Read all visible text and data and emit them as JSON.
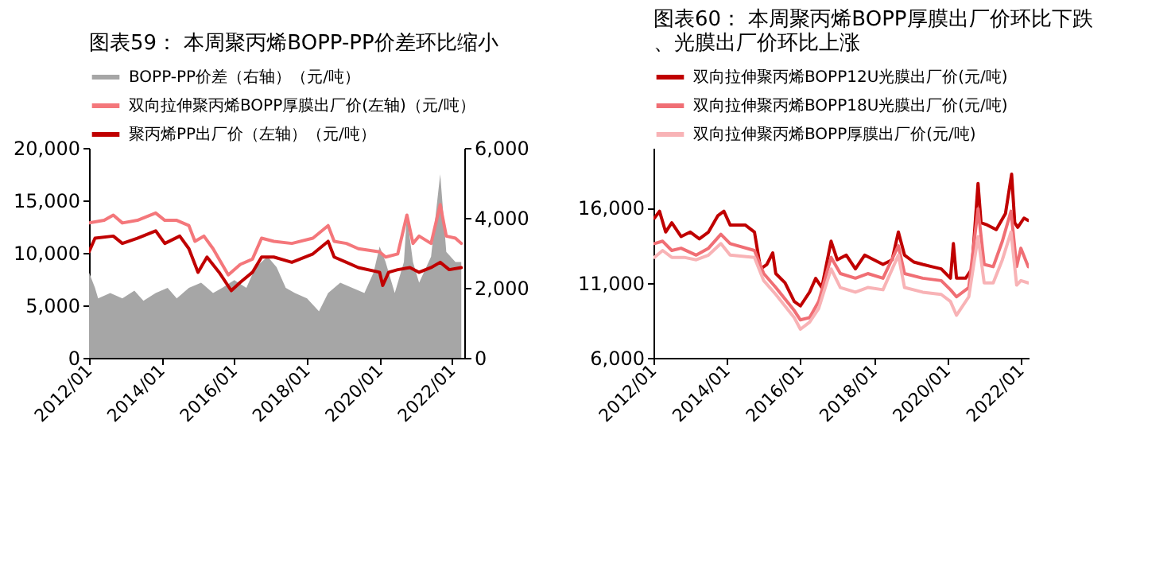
{
  "chart_data": [
    {
      "type": "line",
      "title": "图表59：  本周聚丙烯BOPP-PP价差环比缩小",
      "legend": "top",
      "marker": "none",
      "grid": false,
      "xlim": [
        "2012-01-01",
        "2022-05-01"
      ],
      "xticks": [
        {
          "value": "2012-01-01",
          "label": "2012/01"
        },
        {
          "value": "2014-01-01",
          "label": "2014/01"
        },
        {
          "value": "2016-01-01",
          "label": "2016/01"
        },
        {
          "value": "2018-01-01",
          "label": "2018/01"
        },
        {
          "value": "2020-01-01",
          "label": "2020/01"
        },
        {
          "value": "2022-01-01",
          "label": "2022/01"
        }
      ],
      "ylim": [
        0,
        20000
      ],
      "yticks": [
        0,
        {
          "value": 5000,
          "label": "5,000"
        },
        {
          "value": 10000,
          "label": "10,000"
        },
        {
          "value": 15000,
          "label": "15,000"
        },
        {
          "value": 20000,
          "label": "20,000"
        }
      ],
      "y2lim": [
        0,
        6000
      ],
      "y2ticks": [
        0,
        {
          "value": 2000,
          "label": "2,000"
        },
        {
          "value": 4000,
          "label": "4,000"
        },
        {
          "value": 6000,
          "label": "6,000"
        }
      ],
      "series": [
        {
          "name": "BOPP-PP价差（右轴）（元/吨）",
          "type": "area",
          "axis": "y2",
          "color": "#a6a6a6",
          "x": [
            "2012-01",
            "2012-03",
            "2012-04",
            "2012-08",
            "2012-12",
            "2013-04",
            "2013-07",
            "2013-11",
            "2014-03",
            "2014-06",
            "2014-10",
            "2015-02",
            "2015-06",
            "2015-09",
            "2016-01",
            "2016-05",
            "2016-08",
            "2016-12",
            "2017-03",
            "2017-06",
            "2017-09",
            "2018-01",
            "2018-05",
            "2018-08",
            "2018-12",
            "2019-04",
            "2019-08",
            "2019-11",
            "2020-01",
            "2020-03",
            "2020-06",
            "2020-09",
            "2020-10",
            "2020-12",
            "2021-02",
            "2021-06",
            "2021-09",
            "2021-11",
            "2022-02",
            "2022-04"
          ],
          "values": [
            2440,
            2000,
            1700,
            1850,
            1700,
            1920,
            1630,
            1850,
            2000,
            1700,
            2000,
            2150,
            1850,
            2000,
            2220,
            2000,
            2590,
            2890,
            2590,
            2000,
            1850,
            1700,
            1330,
            1850,
            2150,
            2000,
            1850,
            2440,
            3180,
            2740,
            1850,
            2740,
            4070,
            2740,
            2150,
            2890,
            5250,
            3030,
            2740,
            2740
          ]
        },
        {
          "name": "双向拉伸聚丙烯BOPP厚膜出厂价(左轴)（元/吨）",
          "axis": "y",
          "color": "#f4777b",
          "x": [
            "2012-01",
            "2012-06",
            "2012-09",
            "2012-12",
            "2013-05",
            "2013-11",
            "2014-02",
            "2014-06",
            "2014-10",
            "2014-12",
            "2015-03",
            "2015-06",
            "2015-11",
            "2016-03",
            "2016-07",
            "2016-10",
            "2017-02",
            "2017-08",
            "2018-03",
            "2018-08",
            "2018-10",
            "2019-02",
            "2019-06",
            "2020-01",
            "2020-03",
            "2020-07",
            "2020-10",
            "2020-12",
            "2021-02",
            "2021-06",
            "2021-09",
            "2021-11",
            "2022-02",
            "2022-04"
          ],
          "values": [
            12850,
            13100,
            13600,
            12850,
            13100,
            13800,
            13100,
            13100,
            12600,
            11100,
            11600,
            10400,
            7900,
            8900,
            9400,
            11400,
            11100,
            10900,
            11400,
            12600,
            11100,
            10900,
            10400,
            10100,
            9600,
            9900,
            13600,
            10900,
            11600,
            10900,
            14600,
            11600,
            11400,
            10900
          ]
        },
        {
          "name": "聚丙烯PP出厂价（左轴）（元/吨）",
          "axis": "y",
          "color": "#c00000",
          "x": [
            "2012-01",
            "2012-03",
            "2012-09",
            "2012-12",
            "2013-05",
            "2013-11",
            "2014-02",
            "2014-07",
            "2014-10",
            "2015-01",
            "2015-04",
            "2015-08",
            "2015-12",
            "2016-03",
            "2016-07",
            "2016-10",
            "2017-02",
            "2017-08",
            "2018-03",
            "2018-08",
            "2018-10",
            "2019-02",
            "2019-06",
            "2020-01",
            "2020-02",
            "2020-04",
            "2020-07",
            "2020-11",
            "2021-02",
            "2021-06",
            "2021-09",
            "2021-12",
            "2022-04"
          ],
          "values": [
            10100,
            11400,
            11600,
            10900,
            11400,
            12100,
            10900,
            11600,
            10400,
            8150,
            9600,
            8150,
            6400,
            7200,
            8150,
            9600,
            9600,
            9100,
            9900,
            11100,
            9600,
            9100,
            8600,
            8150,
            6900,
            8150,
            8400,
            8600,
            8150,
            8600,
            9100,
            8400,
            8600
          ]
        }
      ]
    },
    {
      "type": "line",
      "title": "图表60：  本周聚丙烯BOPP厚膜出厂价环比下跌、光膜出厂价环比上涨",
      "legend": "top",
      "marker": "none",
      "grid": false,
      "xlim": [
        "2012-01-01",
        "2022-03-20"
      ],
      "xticks": [
        {
          "value": "2012-01-01",
          "label": "2012/01"
        },
        {
          "value": "2014-01-01",
          "label": "2014/01"
        },
        {
          "value": "2016-01-01",
          "label": "2016/01"
        },
        {
          "value": "2018-01-01",
          "label": "2018/01"
        },
        {
          "value": "2020-01-01",
          "label": "2020/01"
        },
        {
          "value": "2022-01-01",
          "label": "2022/01"
        }
      ],
      "ylim": [
        6000,
        20000
      ],
      "yticks": [
        {
          "value": 6000,
          "label": "6,000"
        },
        {
          "value": 11000,
          "label": "11,000"
        },
        {
          "value": 16000,
          "label": "16,000"
        }
      ],
      "series": [
        {
          "name": "双向拉伸聚丙烯BOPP12U光膜出厂价(元/吨)",
          "color": "#c00000",
          "x": [
            "2012-01-10",
            "2012-03",
            "2012-05",
            "2012-07",
            "2012-10",
            "2013-01",
            "2013-04",
            "2013-07",
            "2013-10",
            "2013-12",
            "2014-02",
            "2014-07",
            "2014-10",
            "2014-12",
            "2015-02",
            "2015-04",
            "2015-05",
            "2015-08",
            "2015-11",
            "2016-01",
            "2016-04",
            "2016-06",
            "2016-08",
            "2016-11",
            "2017-01",
            "2017-04",
            "2017-07",
            "2017-10",
            "2018-01",
            "2018-04",
            "2018-07",
            "2018-09",
            "2018-11",
            "2019-02",
            "2019-05",
            "2019-08",
            "2019-11",
            "2020-02",
            "2020-03",
            "2020-04",
            "2020-07",
            "2020-09",
            "2020-11",
            "2020-12",
            "2021-02",
            "2021-05",
            "2021-08",
            "2021-10",
            "2021-11",
            "2021-12",
            "2022-02",
            "2022-03-15"
          ],
          "values": [
            15320,
            15780,
            14390,
            15010,
            14090,
            14390,
            13930,
            14390,
            15470,
            15780,
            14860,
            14860,
            14390,
            11930,
            12230,
            13000,
            11620,
            11000,
            9760,
            9460,
            10380,
            11300,
            10690,
            13780,
            12540,
            12850,
            11930,
            12850,
            12540,
            12230,
            12540,
            14390,
            12850,
            12390,
            12230,
            12080,
            11930,
            11310,
            13620,
            11310,
            11310,
            11930,
            17630,
            15010,
            14860,
            14550,
            15630,
            18250,
            15010,
            14700,
            15320,
            15160
          ]
        },
        {
          "name": "双向拉伸聚丙烯BOPP18U光膜出厂价(元/吨)",
          "color": "#f06e74",
          "x": [
            "2012-01-10",
            "2012-04",
            "2012-07",
            "2012-10",
            "2013-03",
            "2013-07",
            "2013-11",
            "2014-02",
            "2014-10",
            "2015-01",
            "2015-05",
            "2015-11",
            "2016-01",
            "2016-04",
            "2016-07",
            "2016-11",
            "2017-02",
            "2017-07",
            "2017-11",
            "2018-04",
            "2018-09",
            "2018-11",
            "2019-05",
            "2019-11",
            "2020-02",
            "2020-04",
            "2020-08",
            "2020-11",
            "2021-01",
            "2021-04",
            "2021-07",
            "2021-09-25",
            "2021-11-20",
            "2022-01",
            "2022-03-15"
          ],
          "values": [
            13620,
            13780,
            13160,
            13310,
            12850,
            13310,
            14240,
            13620,
            13160,
            11620,
            10690,
            9150,
            8530,
            8680,
            9760,
            12700,
            11620,
            11310,
            11620,
            11310,
            13470,
            11620,
            11310,
            11150,
            10540,
            10070,
            10690,
            15940,
            12230,
            12080,
            13780,
            15780,
            12080,
            13310,
            12080
          ]
        },
        {
          "name": "双向拉伸聚丙烯BOPP厚膜出厂价(元/吨)",
          "color": "#f8b3b6",
          "x": [
            "2012-01-10",
            "2012-04",
            "2012-07",
            "2012-11",
            "2013-03",
            "2013-07",
            "2013-11",
            "2014-02",
            "2014-10",
            "2015-01",
            "2015-05",
            "2015-11",
            "2016-01",
            "2016-04",
            "2016-07",
            "2016-11",
            "2017-02",
            "2017-07",
            "2017-11",
            "2018-04",
            "2018-09",
            "2018-11",
            "2019-05",
            "2019-11",
            "2020-02",
            "2020-04",
            "2020-08",
            "2020-11",
            "2021-01",
            "2021-04",
            "2021-07",
            "2021-09-25",
            "2021-11-20",
            "2022-01",
            "2022-03-15"
          ],
          "values": [
            12700,
            13160,
            12700,
            12700,
            12540,
            12850,
            13620,
            12850,
            12700,
            11150,
            10230,
            8680,
            7910,
            8380,
            9300,
            11930,
            10690,
            10380,
            10690,
            10540,
            12850,
            10690,
            10380,
            10230,
            9760,
            8840,
            10070,
            14090,
            11000,
            11000,
            12540,
            14390,
            10850,
            11150,
            11000
          ]
        }
      ]
    }
  ]
}
